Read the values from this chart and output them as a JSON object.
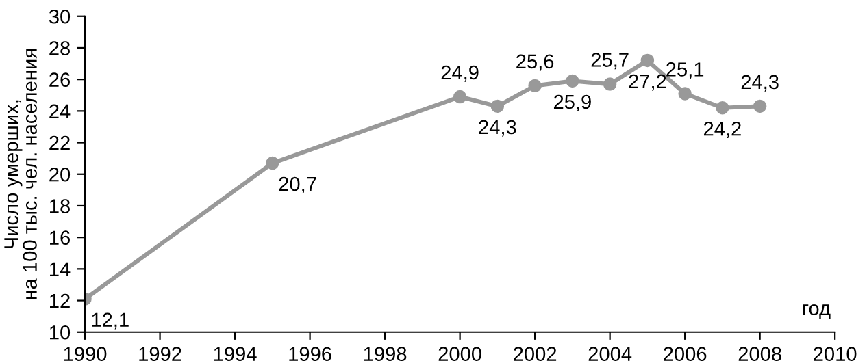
{
  "chart_data": {
    "type": "line",
    "xlabel": "год",
    "ylabel": "Число умерших,\nна 100 тыс. чел. населения",
    "x": [
      1990,
      1995,
      2000,
      2001,
      2002,
      2003,
      2004,
      2005,
      2006,
      2007,
      2008
    ],
    "series": [
      {
        "color": "#999999",
        "values": [
          12.1,
          20.7,
          24.9,
          24.3,
          25.6,
          25.9,
          25.7,
          27.2,
          25.1,
          24.2,
          24.3
        ],
        "value_labels": [
          "12,1",
          "20,7",
          "24,9",
          "24,3",
          "25,6",
          "25,9",
          "25,7",
          "27,2",
          "25,1",
          "24,2",
          "24,3"
        ]
      }
    ],
    "xlim": [
      1990,
      2010
    ],
    "xticks": [
      1990,
      1992,
      1994,
      1996,
      1998,
      2000,
      2002,
      2004,
      2006,
      2008,
      2010
    ],
    "ylim": [
      10,
      30
    ],
    "yticks": [
      10,
      12,
      14,
      16,
      18,
      20,
      22,
      24,
      26,
      28,
      30
    ],
    "marker": "circle",
    "line_style": "solid",
    "grid": false,
    "legend": false
  }
}
